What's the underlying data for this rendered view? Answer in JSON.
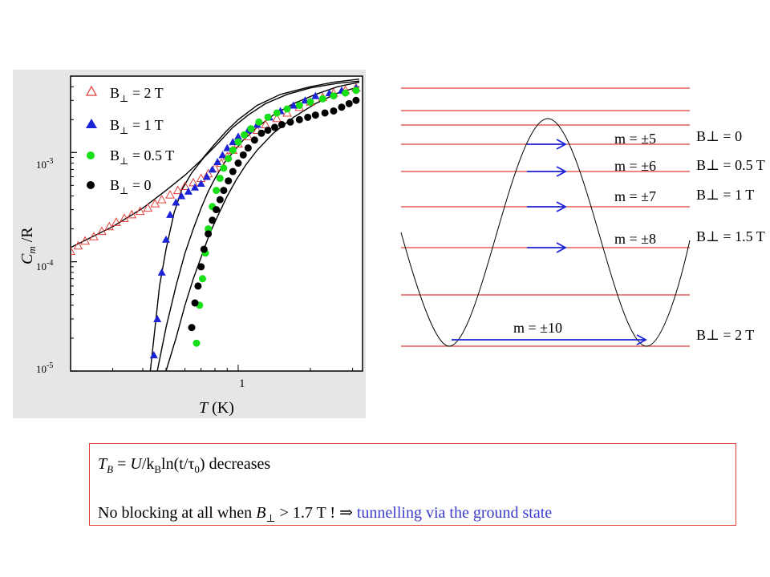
{
  "chart_data": [
    {
      "type": "scatter",
      "title": "",
      "xlabel": "T (K)",
      "ylabel": "Cm/R",
      "xscale": "log",
      "yscale": "log",
      "xlim": [
        0.2,
        3.3
      ],
      "ylim": [
        1e-05,
        0.005
      ],
      "x_tick_labels": [
        "1"
      ],
      "y_tick_labels": [
        "10-3",
        "10-4",
        "10-5"
      ],
      "legend_position": "top-left",
      "series": [
        {
          "name": "B⊥ = 2 T",
          "marker": "open-triangle",
          "color": "#e0413a",
          "points": [
            [
              0.2,
              0.000125
            ],
            [
              0.215,
              0.00014
            ],
            [
              0.23,
              0.000155
            ],
            [
              0.25,
              0.00017
            ],
            [
              0.27,
              0.00019
            ],
            [
              0.29,
              0.00021
            ],
            [
              0.31,
              0.00023
            ],
            [
              0.335,
              0.00025
            ],
            [
              0.36,
              0.00027
            ],
            [
              0.39,
              0.00029
            ],
            [
              0.42,
              0.00031
            ],
            [
              0.45,
              0.00034
            ],
            [
              0.48,
              0.00037
            ],
            [
              0.52,
              0.00041
            ],
            [
              0.56,
              0.00045
            ],
            [
              0.6,
              0.00049
            ],
            [
              0.65,
              0.00053
            ],
            [
              0.7,
              0.00058
            ],
            [
              0.75,
              0.00064
            ],
            [
              0.8,
              0.00072
            ],
            [
              0.85,
              0.0008
            ],
            [
              0.9,
              0.00092
            ],
            [
              0.95,
              0.00105
            ],
            [
              1.0,
              0.0012
            ],
            [
              1.1,
              0.0014
            ],
            [
              1.2,
              0.0016
            ],
            [
              1.3,
              0.0018
            ],
            [
              1.45,
              0.00205
            ],
            [
              1.6,
              0.0023
            ],
            [
              1.8,
              0.0026
            ],
            [
              2.0,
              0.0029
            ],
            [
              2.25,
              0.0032
            ],
            [
              2.5,
              0.0035
            ],
            [
              2.8,
              0.0037
            ],
            [
              3.1,
              0.0039
            ]
          ]
        },
        {
          "name": "B⊥ = 1 T",
          "marker": "filled-triangle",
          "color": "#1c22d6",
          "points": [
            [
              0.445,
              1.4e-05
            ],
            [
              0.46,
              3e-05
            ],
            [
              0.48,
              8e-05
            ],
            [
              0.5,
              0.00016
            ],
            [
              0.52,
              0.00027
            ],
            [
              0.55,
              0.00035
            ],
            [
              0.58,
              0.0004
            ],
            [
              0.62,
              0.00044
            ],
            [
              0.66,
              0.00048
            ],
            [
              0.7,
              0.00052
            ],
            [
              0.74,
              0.0006
            ],
            [
              0.78,
              0.0007
            ],
            [
              0.82,
              0.00082
            ],
            [
              0.86,
              0.00095
            ],
            [
              0.9,
              0.0011
            ],
            [
              0.95,
              0.00125
            ],
            [
              1.0,
              0.0014
            ],
            [
              1.1,
              0.0016
            ],
            [
              1.2,
              0.0018
            ],
            [
              1.35,
              0.0021
            ],
            [
              1.5,
              0.0024
            ],
            [
              1.7,
              0.0027
            ],
            [
              1.9,
              0.003
            ],
            [
              2.1,
              0.0033
            ],
            [
              2.4,
              0.0035
            ],
            [
              2.7,
              0.0037
            ],
            [
              3.1,
              0.0039
            ]
          ]
        },
        {
          "name": "B⊥ = 0.5 T",
          "marker": "filled-circle",
          "color": "#18e018",
          "points": [
            [
              0.67,
              1.8e-05
            ],
            [
              0.69,
              4e-05
            ],
            [
              0.71,
              7e-05
            ],
            [
              0.73,
              0.00012
            ],
            [
              0.75,
              0.0002
            ],
            [
              0.78,
              0.00032
            ],
            [
              0.81,
              0.00045
            ],
            [
              0.84,
              0.00058
            ],
            [
              0.87,
              0.00072
            ],
            [
              0.91,
              0.00088
            ],
            [
              0.95,
              0.00105
            ],
            [
              1.0,
              0.00125
            ],
            [
              1.06,
              0.00145
            ],
            [
              1.13,
              0.00165
            ],
            [
              1.22,
              0.0019
            ],
            [
              1.33,
              0.0021
            ],
            [
              1.45,
              0.0023
            ],
            [
              1.6,
              0.0025
            ],
            [
              1.8,
              0.0027
            ],
            [
              2.0,
              0.0029
            ],
            [
              2.25,
              0.0031
            ],
            [
              2.5,
              0.0033
            ],
            [
              2.8,
              0.0035
            ],
            [
              3.1,
              0.0037
            ]
          ]
        },
        {
          "name": "B⊥ = 0",
          "marker": "filled-circle",
          "color": "#000000",
          "points": [
            [
              0.64,
              2.5e-05
            ],
            [
              0.66,
              4.2e-05
            ],
            [
              0.68,
              6e-05
            ],
            [
              0.7,
              9e-05
            ],
            [
              0.72,
              0.00013
            ],
            [
              0.75,
              0.00018
            ],
            [
              0.78,
              0.00024
            ],
            [
              0.81,
              0.0003
            ],
            [
              0.84,
              0.00037
            ],
            [
              0.87,
              0.00045
            ],
            [
              0.91,
              0.00055
            ],
            [
              0.95,
              0.00067
            ],
            [
              1.0,
              0.0008
            ],
            [
              1.05,
              0.00095
            ],
            [
              1.1,
              0.0011
            ],
            [
              1.17,
              0.0013
            ],
            [
              1.25,
              0.0015
            ],
            [
              1.33,
              0.0016
            ],
            [
              1.42,
              0.0017
            ],
            [
              1.52,
              0.0018
            ],
            [
              1.65,
              0.0019
            ],
            [
              1.8,
              0.002
            ],
            [
              1.95,
              0.0021
            ],
            [
              2.1,
              0.0022
            ],
            [
              2.3,
              0.0023
            ],
            [
              2.5,
              0.0024
            ],
            [
              2.7,
              0.0026
            ],
            [
              2.9,
              0.0028
            ],
            [
              3.1,
              0.003
            ]
          ]
        }
      ],
      "model_curves": [
        [
          [
            0.2,
            0.000135
          ],
          [
            0.3,
            0.00021
          ],
          [
            0.4,
            0.00031
          ],
          [
            0.5,
            0.00045
          ],
          [
            0.6,
            0.00062
          ],
          [
            0.7,
            0.00085
          ],
          [
            0.8,
            0.0012
          ],
          [
            0.9,
            0.0016
          ],
          [
            1.0,
            0.002
          ],
          [
            1.2,
            0.0027
          ],
          [
            1.5,
            0.0034
          ],
          [
            2.0,
            0.004
          ],
          [
            2.5,
            0.0044
          ],
          [
            3.2,
            0.0047
          ]
        ],
        [
          [
            0.43,
            1e-05
          ],
          [
            0.45,
            2.5e-05
          ],
          [
            0.47,
            6e-05
          ],
          [
            0.5,
            0.00013
          ],
          [
            0.54,
            0.00028
          ],
          [
            0.58,
            0.00045
          ],
          [
            0.64,
            0.00065
          ],
          [
            0.72,
            0.0009
          ],
          [
            0.82,
            0.0012
          ],
          [
            0.95,
            0.0017
          ],
          [
            1.1,
            0.0022
          ],
          [
            1.3,
            0.0028
          ],
          [
            1.6,
            0.0034
          ],
          [
            2.0,
            0.0039
          ],
          [
            2.6,
            0.0043
          ],
          [
            3.2,
            0.0045
          ]
        ],
        [
          [
            0.46,
            1e-05
          ],
          [
            0.5,
            2.5e-05
          ],
          [
            0.55,
            6e-05
          ],
          [
            0.6,
            0.00012
          ],
          [
            0.65,
            0.0002
          ],
          [
            0.7,
            0.00031
          ],
          [
            0.75,
            0.00044
          ],
          [
            0.8,
            0.00058
          ],
          [
            0.88,
            0.00082
          ],
          [
            0.95,
            0.001
          ],
          [
            1.05,
            0.0013
          ],
          [
            1.2,
            0.0017
          ],
          [
            1.4,
            0.0022
          ],
          [
            1.7,
            0.0028
          ],
          [
            2.1,
            0.0034
          ],
          [
            2.6,
            0.004
          ],
          [
            3.2,
            0.0044
          ]
        ],
        [
          [
            0.5,
            1e-05
          ],
          [
            0.55,
            2e-05
          ],
          [
            0.6,
            4e-05
          ],
          [
            0.65,
            7e-05
          ],
          [
            0.7,
            0.00011
          ],
          [
            0.76,
            0.00018
          ],
          [
            0.82,
            0.00026
          ],
          [
            0.9,
            0.0004
          ],
          [
            0.98,
            0.00056
          ],
          [
            1.08,
            0.00078
          ],
          [
            1.2,
            0.00105
          ],
          [
            1.4,
            0.0015
          ],
          [
            1.7,
            0.0021
          ],
          [
            2.1,
            0.0028
          ],
          [
            2.6,
            0.0035
          ],
          [
            3.2,
            0.004
          ]
        ]
      ]
    }
  ],
  "energy_diagram": {
    "transitions": [
      {
        "label": "m = ±5",
        "field": "B⊥ = 0"
      },
      {
        "label": "m = ±6",
        "field": "B⊥ = 0.5 T"
      },
      {
        "label": "m = ±7",
        "field": "B⊥ = 1 T"
      },
      {
        "label": "m = ±8",
        "field": "B⊥ = 1.5 T"
      },
      {
        "label": "m = ±10",
        "field": "B⊥ = 2 T"
      }
    ]
  },
  "caption": {
    "line1_T": "T",
    "line1_B": "B",
    "line1_eq": " = ",
    "line1_U": "U",
    "line1_kb": "/k",
    "line1_kbsub": "B",
    "line1_ln": "ln(t/τ",
    "line1_tausub": "0",
    "line1_rest": ") decreases",
    "line2_text": "No blocking at all when ",
    "line2_B": "B",
    "line2_perp": "⊥",
    "line2_rest": " > 1.7 T !  ⇒  ",
    "line2_blue": "tunnelling via the ground state"
  },
  "colors": {
    "red": "#e0413a",
    "blue": "#1c22d6",
    "green": "#18e018",
    "black": "#000000",
    "caption_blue": "#3a3ccc"
  }
}
